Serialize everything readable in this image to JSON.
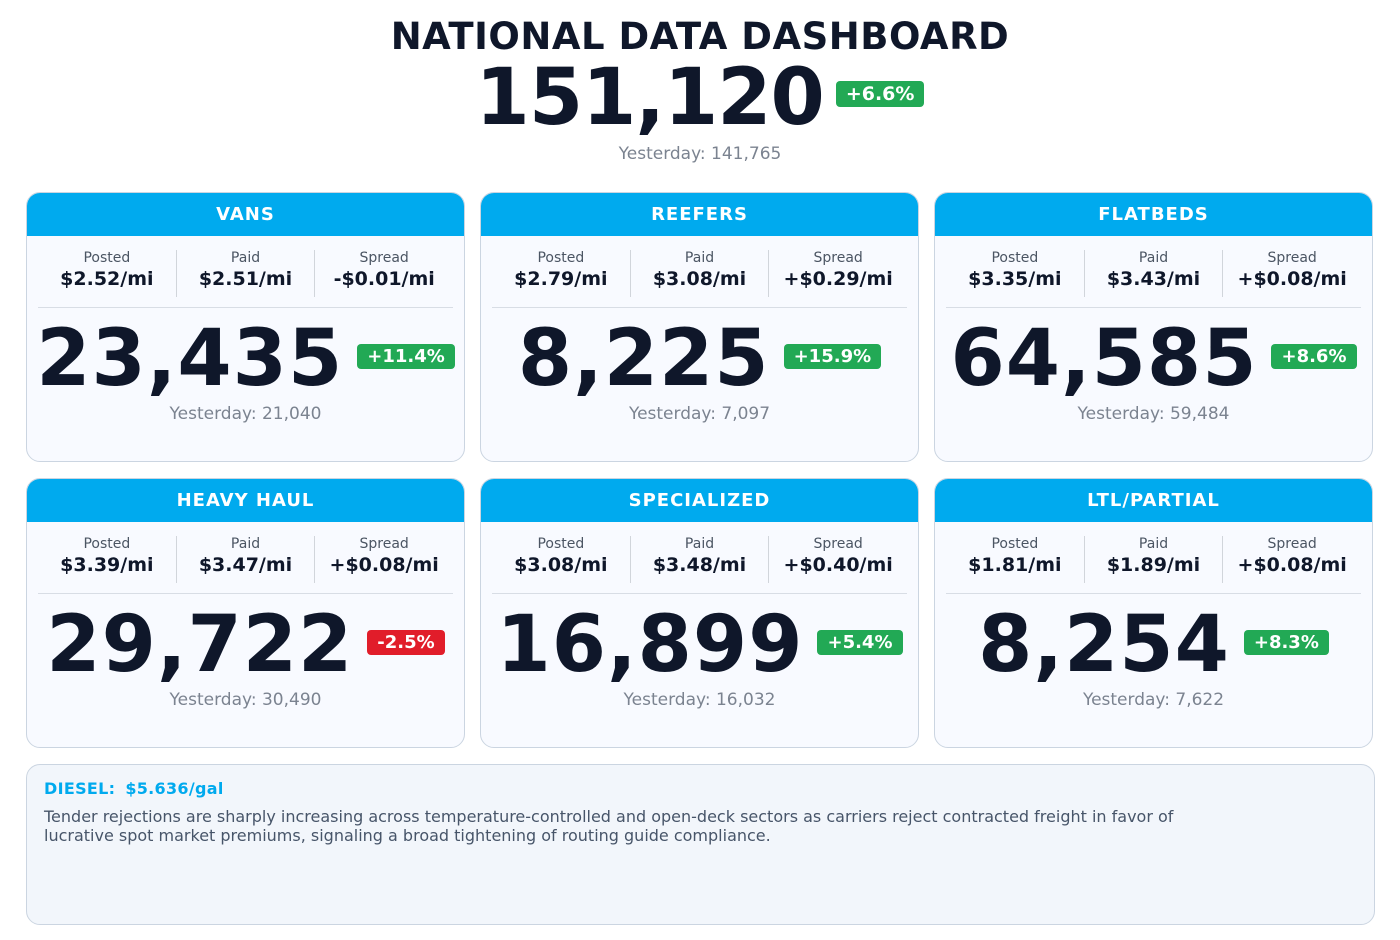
{
  "header": {
    "title": "NATIONAL DATA DASHBOARD",
    "total": "151,120",
    "change": "+6.6%",
    "change_direction": "up",
    "yesterday": "Yesterday: 141,765"
  },
  "labels": {
    "posted": "Posted",
    "paid": "Paid",
    "spread": "Spread"
  },
  "cards": [
    {
      "name": "VANS",
      "posted": "$2.52/mi",
      "paid": "$2.51/mi",
      "spread": "-$0.01/mi",
      "count": "23,435",
      "change": "+11.4%",
      "direction": "up",
      "yesterday": "Yesterday: 21,040"
    },
    {
      "name": "REEFERS",
      "posted": "$2.79/mi",
      "paid": "$3.08/mi",
      "spread": "+$0.29/mi",
      "count": "8,225",
      "change": "+15.9%",
      "direction": "up",
      "yesterday": "Yesterday: 7,097"
    },
    {
      "name": "FLATBEDS",
      "posted": "$3.35/mi",
      "paid": "$3.43/mi",
      "spread": "+$0.08/mi",
      "count": "64,585",
      "change": "+8.6%",
      "direction": "up",
      "yesterday": "Yesterday: 59,484"
    },
    {
      "name": "HEAVY HAUL",
      "posted": "$3.39/mi",
      "paid": "$3.47/mi",
      "spread": "+$0.08/mi",
      "count": "29,722",
      "change": "-2.5%",
      "direction": "down",
      "yesterday": "Yesterday: 30,490"
    },
    {
      "name": "SPECIALIZED",
      "posted": "$3.08/mi",
      "paid": "$3.48/mi",
      "spread": "+$0.40/mi",
      "count": "16,899",
      "change": "+5.4%",
      "direction": "up",
      "yesterday": "Yesterday: 16,032"
    },
    {
      "name": "LTL/PARTIAL",
      "posted": "$1.81/mi",
      "paid": "$1.89/mi",
      "spread": "+$0.08/mi",
      "count": "8,254",
      "change": "+8.3%",
      "direction": "up",
      "yesterday": "Yesterday: 7,622"
    }
  ],
  "diesel": {
    "label": "DIESEL:",
    "price": "$5.636/gal",
    "commentary": "Tender rejections are sharply increasing across temperature-controlled and open-deck sectors as carriers reject contracted freight in favor of lucrative spot market premiums, signaling a broad tightening of routing guide compliance."
  },
  "colors": {
    "accent": "#00aaee",
    "up": "#22a955",
    "down": "#e11d2a",
    "text": "#0f172a",
    "muted": "#7b8390"
  }
}
